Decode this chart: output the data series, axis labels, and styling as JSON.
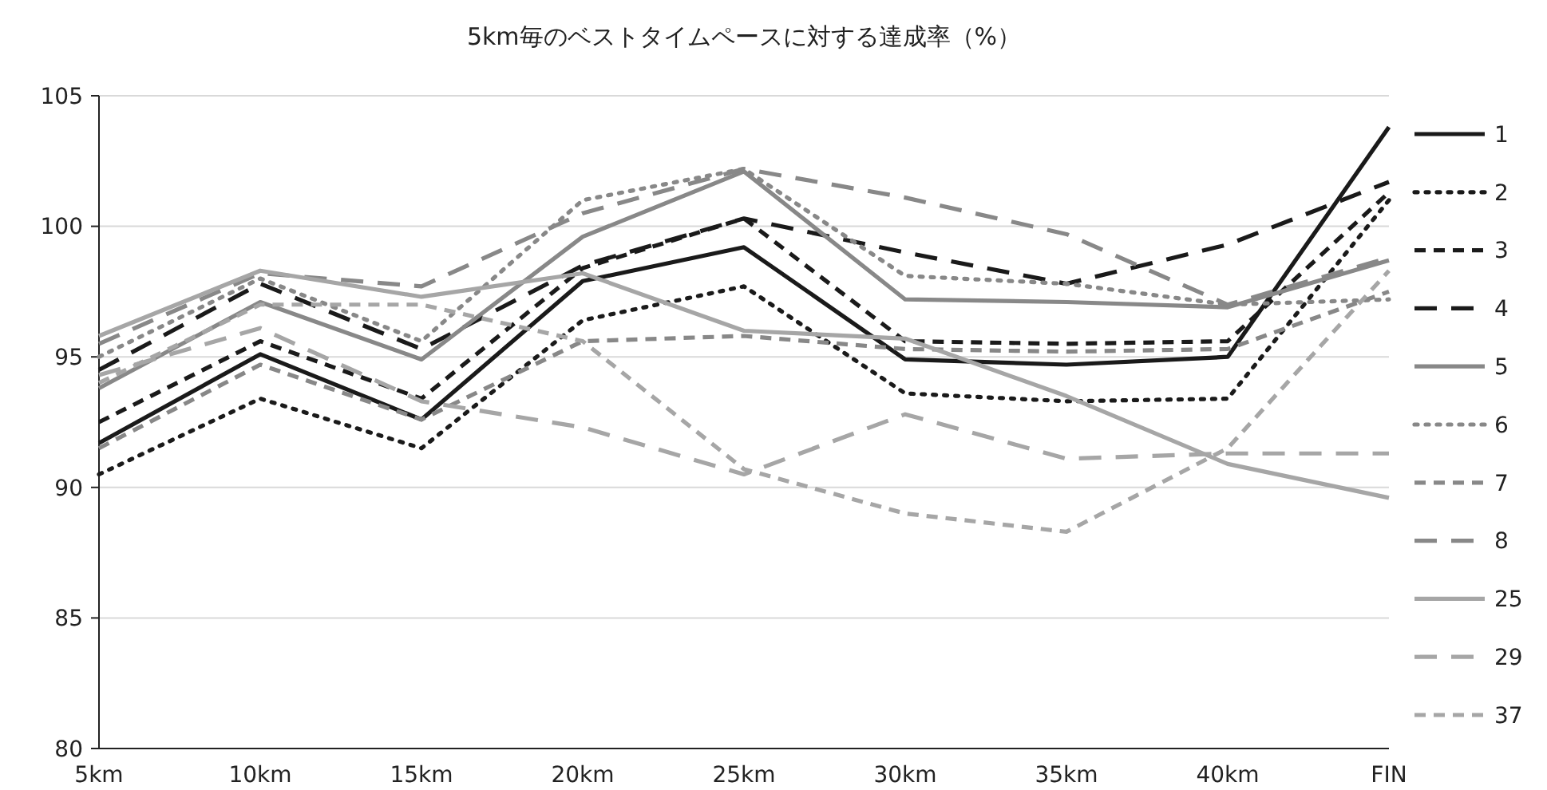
{
  "chart_data": {
    "type": "line",
    "title": "5km毎のベストタイムペースに対する達成率（%）",
    "categories": [
      "5km",
      "10km",
      "15km",
      "20km",
      "25km",
      "30km",
      "35km",
      "40km",
      "FIN"
    ],
    "ylim": [
      80,
      105
    ],
    "yticks": [
      80,
      85,
      90,
      95,
      100,
      105
    ],
    "grid": "y",
    "legend": "right",
    "marker": "none",
    "series": [
      {
        "name": "1",
        "color": "#1a1a1a",
        "line_style": "solid",
        "values": [
          91.7,
          95.1,
          92.6,
          97.9,
          99.2,
          94.9,
          94.7,
          95.0,
          103.8
        ]
      },
      {
        "name": "2",
        "color": "#1a1a1a",
        "line_style": "dotted",
        "values": [
          90.5,
          93.4,
          91.5,
          96.4,
          97.7,
          93.6,
          93.3,
          93.4,
          101.0
        ]
      },
      {
        "name": "3",
        "color": "#1a1a1a",
        "line_style": "dashed",
        "values": [
          92.5,
          95.6,
          93.4,
          98.4,
          100.3,
          95.6,
          95.5,
          95.6,
          101.3
        ]
      },
      {
        "name": "4",
        "color": "#1a1a1a",
        "line_style": "dashed",
        "values": [
          94.5,
          97.8,
          95.3,
          98.5,
          100.3,
          99.0,
          97.8,
          99.3,
          101.7
        ]
      },
      {
        "name": "5",
        "color": "#888888",
        "line_style": "solid",
        "values": [
          93.8,
          97.1,
          94.9,
          99.6,
          102.1,
          97.2,
          97.1,
          96.9,
          98.7
        ]
      },
      {
        "name": "6",
        "color": "#888888",
        "line_style": "dotted",
        "values": [
          95.0,
          98.0,
          95.6,
          101.0,
          102.2,
          98.1,
          97.8,
          97.0,
          97.2
        ]
      },
      {
        "name": "7",
        "color": "#888888",
        "line_style": "dashed",
        "values": [
          91.5,
          94.7,
          92.6,
          95.6,
          95.8,
          95.3,
          95.2,
          95.3,
          97.5
        ]
      },
      {
        "name": "8",
        "color": "#888888",
        "line_style": "dashed",
        "values": [
          95.5,
          98.2,
          97.7,
          100.5,
          102.2,
          101.1,
          99.7,
          97.0,
          98.8
        ]
      },
      {
        "name": "25",
        "color": "#a6a6a6",
        "line_style": "solid",
        "values": [
          95.8,
          98.3,
          97.3,
          98.2,
          96.0,
          95.7,
          93.5,
          90.9,
          89.6
        ]
      },
      {
        "name": "29",
        "color": "#a6a6a6",
        "line_style": "dashed",
        "values": [
          94.3,
          96.1,
          93.3,
          92.3,
          90.5,
          92.8,
          91.1,
          91.3,
          91.3
        ]
      },
      {
        "name": "37",
        "color": "#a6a6a6",
        "line_style": "dashed",
        "values": [
          94.0,
          97.0,
          97.0,
          95.6,
          90.7,
          89.0,
          88.3,
          91.5,
          98.3
        ]
      }
    ]
  }
}
